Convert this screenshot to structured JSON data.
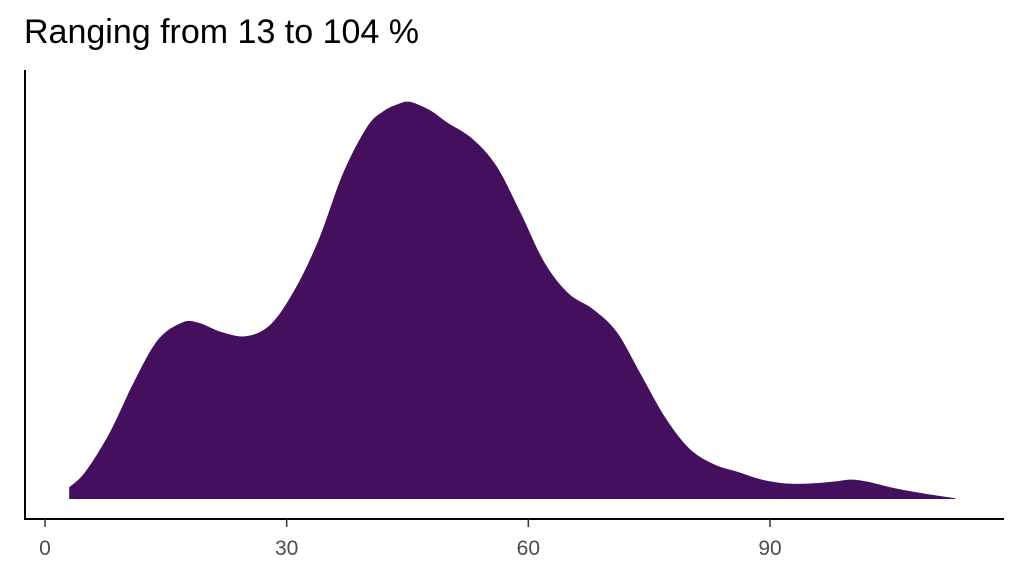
{
  "chart_data": {
    "type": "area",
    "title": "Ranging from 13 to 104 %",
    "xlabel": "",
    "ylabel": "",
    "xlim": [
      -2,
      118
    ],
    "ylim": [
      0,
      1.06
    ],
    "x_ticks": [
      0,
      30,
      60,
      90
    ],
    "x_tick_labels": [
      "0",
      "30",
      "60",
      "90"
    ],
    "grid": false,
    "legend": "none",
    "fill_color": "#440f5c",
    "axis_color": "#000000",
    "series": [
      {
        "x": [
          3,
          5,
          8,
          11,
          14,
          17,
          19,
          22,
          25,
          28,
          31,
          34,
          37,
          40,
          42,
          44,
          45,
          46,
          48,
          50,
          53,
          56,
          59,
          62,
          65,
          68,
          71,
          74,
          77,
          80,
          83,
          86,
          89,
          92,
          95,
          98,
          100,
          102,
          105,
          108,
          111,
          113
        ],
        "y": [
          0.03,
          0.07,
          0.17,
          0.3,
          0.41,
          0.455,
          0.455,
          0.43,
          0.42,
          0.45,
          0.54,
          0.67,
          0.84,
          0.96,
          1.0,
          1.02,
          1.025,
          1.02,
          1.0,
          0.97,
          0.93,
          0.86,
          0.74,
          0.61,
          0.53,
          0.49,
          0.43,
          0.32,
          0.21,
          0.13,
          0.09,
          0.07,
          0.05,
          0.04,
          0.04,
          0.045,
          0.05,
          0.045,
          0.03,
          0.018,
          0.008,
          0.002
        ]
      }
    ]
  }
}
